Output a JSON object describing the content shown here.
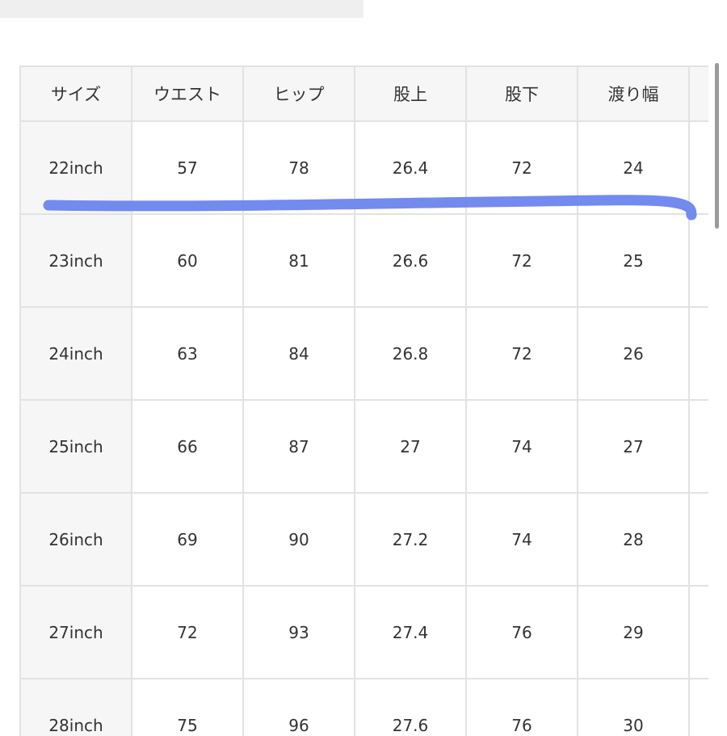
{
  "table": {
    "headers": [
      "サイズ",
      "ウエスト",
      "ヒップ",
      "股上",
      "股下",
      "渡り幅",
      ""
    ],
    "rows": [
      [
        "22inch",
        "57",
        "78",
        "26.4",
        "72",
        "24"
      ],
      [
        "23inch",
        "60",
        "81",
        "26.6",
        "72",
        "25"
      ],
      [
        "24inch",
        "63",
        "84",
        "26.8",
        "72",
        "26"
      ],
      [
        "25inch",
        "66",
        "87",
        "27",
        "74",
        "27"
      ],
      [
        "26inch",
        "69",
        "90",
        "27.2",
        "74",
        "28"
      ],
      [
        "27inch",
        "72",
        "93",
        "27.4",
        "76",
        "29"
      ],
      [
        "28inch",
        "75",
        "96",
        "27.6",
        "76",
        "30"
      ]
    ]
  },
  "annotation": {
    "highlight_row": "22inch",
    "color": "#6b84ee"
  }
}
